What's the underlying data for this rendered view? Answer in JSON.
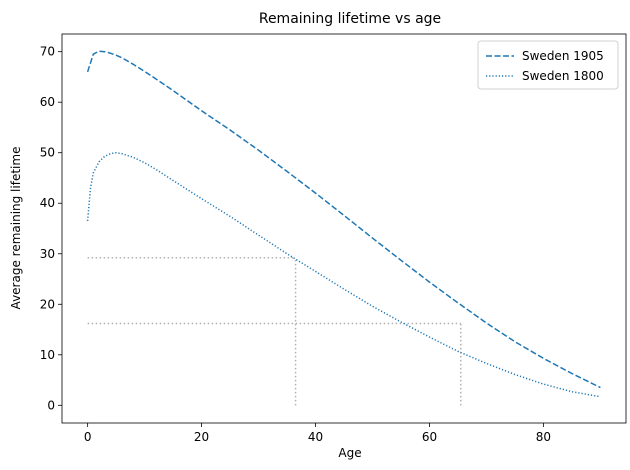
{
  "chart_data": {
    "type": "line",
    "title": "Remaining lifetime vs age",
    "xlabel": "Age",
    "ylabel": "Average remaining lifetime",
    "xlim": [
      -4.5,
      94.5
    ],
    "ylim": [
      -3.5,
      73.5
    ],
    "xticks": [
      0,
      20,
      40,
      60,
      80
    ],
    "yticks": [
      0,
      10,
      20,
      30,
      40,
      50,
      60,
      70
    ],
    "grid": false,
    "legend_position": "top-right",
    "series": [
      {
        "name": "Sweden 1905",
        "color": "#1f77b4",
        "linestyle": "dashed",
        "x": [
          0,
          1,
          2,
          3,
          4,
          5,
          6,
          8,
          10,
          12,
          15,
          20,
          25,
          30,
          35,
          40,
          45,
          50,
          55,
          60,
          65,
          70,
          75,
          80,
          85,
          90
        ],
        "y": [
          66,
          69.5,
          70.1,
          70.0,
          69.7,
          69.3,
          68.8,
          67.5,
          66.1,
          64.6,
          62.3,
          58.3,
          54.5,
          50.5,
          46.3,
          42.0,
          37.6,
          33.1,
          28.7,
          24.4,
          20.3,
          16.3,
          12.6,
          9.3,
          6.3,
          3.5
        ]
      },
      {
        "name": "Sweden 1800",
        "color": "#1f77b4",
        "linestyle": "dotted",
        "x": [
          0,
          0.5,
          1,
          2,
          3,
          4,
          5,
          6,
          8,
          10,
          12,
          15,
          20,
          25,
          30,
          35,
          40,
          45,
          50,
          55,
          60,
          65,
          70,
          75,
          80,
          85,
          90
        ],
        "y": [
          36.5,
          43.0,
          46.0,
          48.2,
          49.3,
          49.8,
          50.0,
          49.8,
          49.1,
          48.0,
          46.7,
          44.5,
          40.9,
          37.4,
          33.7,
          30.0,
          26.5,
          23.0,
          19.6,
          16.5,
          13.5,
          10.7,
          8.3,
          6.1,
          4.2,
          2.7,
          1.7
        ]
      }
    ],
    "reference_lines": [
      {
        "type": "hline",
        "y": 29.2,
        "x_from": 0,
        "x_to": 36.5,
        "color": "#b0b0b0",
        "linestyle": "dotted"
      },
      {
        "type": "vline",
        "x": 36.5,
        "y_from": 0,
        "y_to": 29.2,
        "color": "#b0b0b0",
        "linestyle": "dotted"
      },
      {
        "type": "hline",
        "y": 16.2,
        "x_from": 0,
        "x_to": 65.5,
        "color": "#b0b0b0",
        "linestyle": "dotted"
      },
      {
        "type": "vline",
        "x": 65.5,
        "y_from": 0,
        "y_to": 16.2,
        "color": "#b0b0b0",
        "linestyle": "dotted"
      }
    ]
  }
}
